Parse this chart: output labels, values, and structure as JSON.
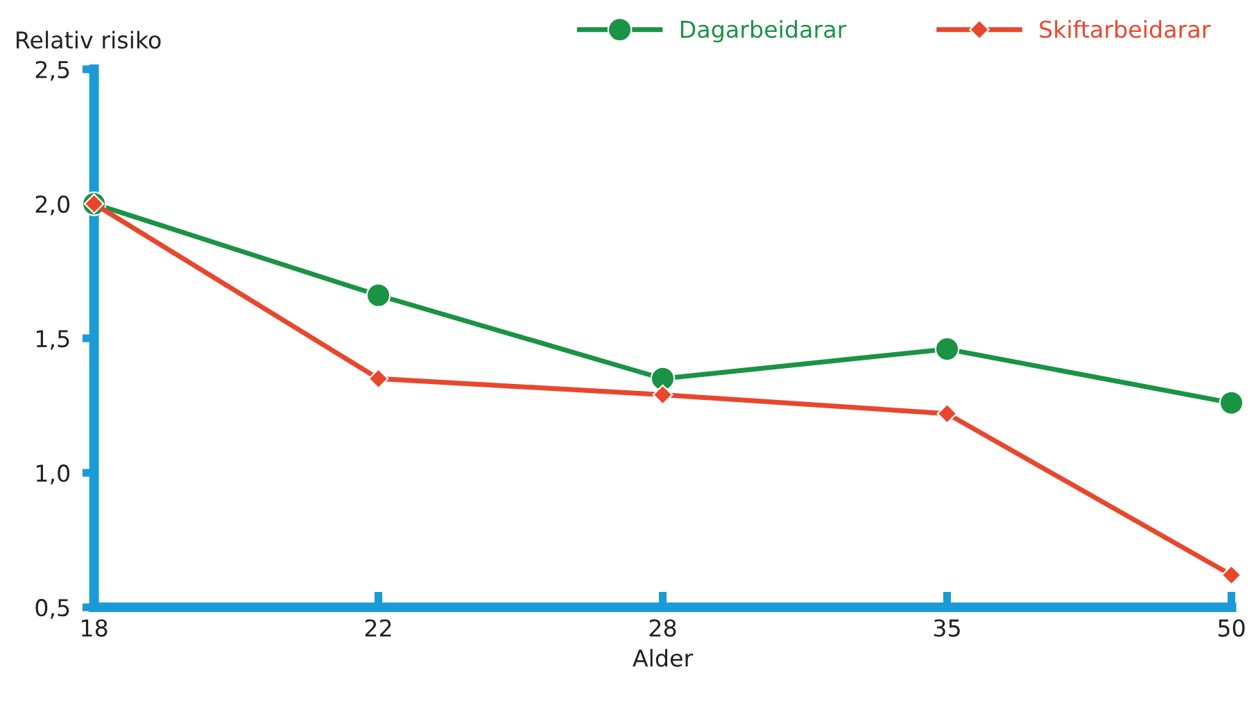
{
  "chart_data": {
    "type": "line",
    "xlabel": "Alder",
    "ylabel": "Relativ risiko",
    "categories": [
      "18",
      "22",
      "28",
      "35",
      "50"
    ],
    "series": [
      {
        "name": "Dagarbeidarar",
        "color": "#1a9345",
        "marker": "circle",
        "values": [
          2.0,
          1.66,
          1.35,
          1.46,
          1.26
        ]
      },
      {
        "name": "Skiftarbeidarar",
        "color": "#e8472e",
        "marker": "diamond",
        "values": [
          2.0,
          1.35,
          1.29,
          1.22,
          0.62
        ]
      }
    ],
    "ylim": [
      0.5,
      2.5
    ],
    "yticks": [
      {
        "value": 0.5,
        "label": "0,5"
      },
      {
        "value": 1.0,
        "label": "1,0"
      },
      {
        "value": 1.5,
        "label": "1,5"
      },
      {
        "value": 2.0,
        "label": "2,0"
      },
      {
        "value": 2.5,
        "label": "2,5"
      }
    ],
    "grid": false,
    "legend": "top right",
    "line_style": "solid"
  }
}
